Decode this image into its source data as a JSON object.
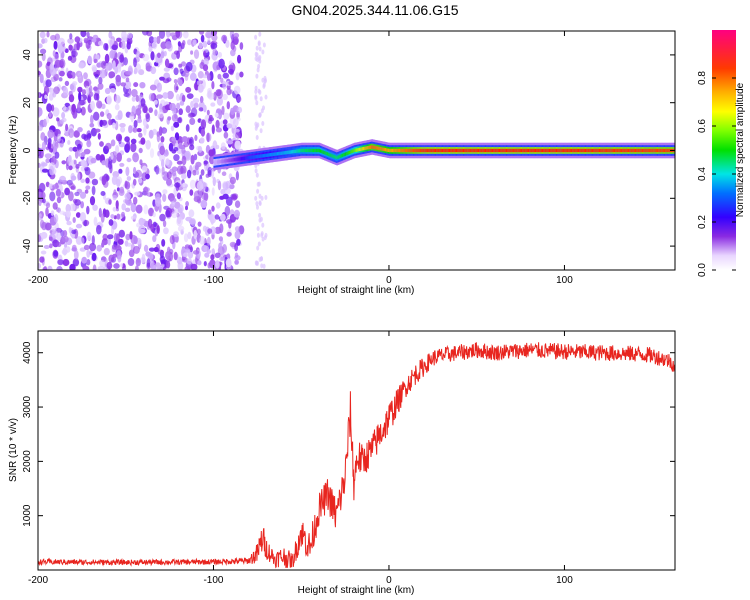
{
  "title": "GN04.2025.344.11.06.G15",
  "chart_data": [
    {
      "type": "heatmap",
      "xlabel": "Height of straight line (km)",
      "ylabel": "Frequency (Hz)",
      "xlim": [
        -200,
        163
      ],
      "ylim": [
        -50,
        50
      ],
      "xticks": [
        -200,
        -100,
        0,
        100
      ],
      "yticks": [
        -40,
        -20,
        0,
        20,
        40
      ],
      "colorbar": {
        "label": "Normalized spectral amplitude",
        "range": [
          0,
          1
        ],
        "ticks": [
          "0.0",
          "0.2",
          "0.4",
          "0.6",
          "0.8"
        ],
        "tick_values": [
          0,
          0.2,
          0.4,
          0.6,
          0.8
        ]
      },
      "signal_track": {
        "x": [
          -100,
          -90,
          -80,
          -70,
          -60,
          -50,
          -40,
          -30,
          -20,
          -10,
          0,
          10,
          20,
          60,
          100,
          163
        ],
        "freq": [
          -5,
          -4,
          -3,
          -2,
          -1,
          0,
          0,
          -3,
          0,
          1.5,
          0,
          0,
          0,
          0,
          0,
          0
        ],
        "amplitude": [
          0.1,
          0.2,
          0.35,
          0.4,
          0.45,
          0.55,
          0.6,
          0.55,
          0.65,
          0.85,
          0.8,
          0.85,
          0.9,
          0.9,
          0.9,
          0.88
        ]
      },
      "noise_region_x": [
        -200,
        -84
      ]
    },
    {
      "type": "line",
      "xlabel": "Height of straight line (km)",
      "ylabel": "SNR (10 * v/v)",
      "xlim": [
        -200,
        163
      ],
      "ylim": [
        0,
        4400
      ],
      "xticks": [
        -200,
        -100,
        0,
        100
      ],
      "yticks": [
        1000,
        2000,
        3000,
        4000
      ],
      "series": [
        {
          "name": "SNR",
          "color": "#e8251f",
          "x": [
            -200,
            -150,
            -100,
            -80,
            -75,
            -72,
            -70,
            -65,
            -60,
            -55,
            -50,
            -45,
            -40,
            -35,
            -30,
            -25,
            -22,
            -20,
            -18,
            -15,
            -10,
            -5,
            0,
            5,
            10,
            15,
            20,
            25,
            30,
            40,
            50,
            60,
            80,
            100,
            120,
            140,
            150,
            160,
            163
          ],
          "y": [
            150,
            140,
            150,
            170,
            300,
            600,
            400,
            200,
            250,
            150,
            700,
            400,
            1100,
            1400,
            1000,
            1700,
            2900,
            1600,
            2100,
            2000,
            2200,
            2500,
            2800,
            3100,
            3400,
            3600,
            3750,
            3900,
            3950,
            4000,
            4050,
            4000,
            4050,
            4020,
            4000,
            3980,
            3950,
            3850,
            3750
          ],
          "noise_amplitude": [
            50,
            50,
            50,
            60,
            200,
            300,
            200,
            150,
            200,
            150,
            300,
            300,
            300,
            300,
            350,
            350,
            400,
            350,
            350,
            300,
            300,
            300,
            300,
            250,
            200,
            200,
            180,
            150,
            150,
            150,
            150,
            150,
            150,
            150,
            150,
            150,
            150,
            150,
            150
          ]
        }
      ]
    }
  ]
}
